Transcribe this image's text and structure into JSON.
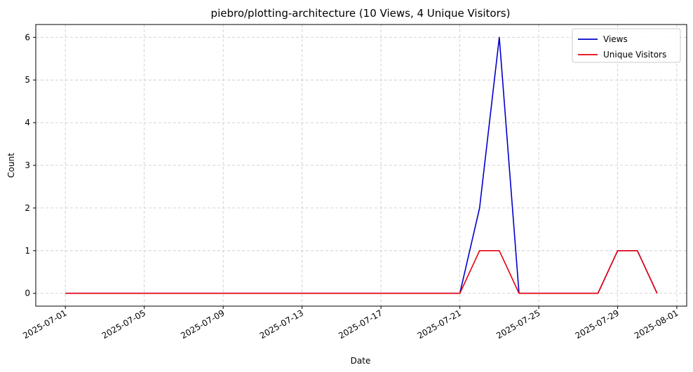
{
  "chart_data": {
    "type": "line",
    "title": "piebro/plotting-architecture (10 Views, 4 Unique Visitors)",
    "xlabel": "Date",
    "ylabel": "Count",
    "x": [
      "2025-07-01",
      "2025-07-02",
      "2025-07-03",
      "2025-07-04",
      "2025-07-05",
      "2025-07-06",
      "2025-07-07",
      "2025-07-08",
      "2025-07-09",
      "2025-07-10",
      "2025-07-11",
      "2025-07-12",
      "2025-07-13",
      "2025-07-14",
      "2025-07-15",
      "2025-07-16",
      "2025-07-17",
      "2025-07-18",
      "2025-07-19",
      "2025-07-20",
      "2025-07-21",
      "2025-07-22",
      "2025-07-23",
      "2025-07-24",
      "2025-07-25",
      "2025-07-26",
      "2025-07-27",
      "2025-07-28",
      "2025-07-29",
      "2025-07-30",
      "2025-07-31"
    ],
    "series": [
      {
        "name": "Views",
        "color": "#0000cc",
        "values": [
          0,
          0,
          0,
          0,
          0,
          0,
          0,
          0,
          0,
          0,
          0,
          0,
          0,
          0,
          0,
          0,
          0,
          0,
          0,
          0,
          0,
          2,
          6,
          0,
          0,
          0,
          0,
          0,
          1,
          1,
          0
        ]
      },
      {
        "name": "Unique Visitors",
        "color": "#e8000b",
        "values": [
          0,
          0,
          0,
          0,
          0,
          0,
          0,
          0,
          0,
          0,
          0,
          0,
          0,
          0,
          0,
          0,
          0,
          0,
          0,
          0,
          0,
          1,
          1,
          0,
          0,
          0,
          0,
          0,
          1,
          1,
          0
        ]
      }
    ],
    "xticks": [
      "2025-07-01",
      "2025-07-05",
      "2025-07-09",
      "2025-07-13",
      "2025-07-17",
      "2025-07-21",
      "2025-07-25",
      "2025-07-29",
      "2025-08-01"
    ],
    "xlim": [
      "2025-06-29.5",
      "2025-08-01.5"
    ],
    "yticks": [
      0,
      1,
      2,
      3,
      4,
      5,
      6
    ],
    "ylim": [
      -0.3,
      6.3
    ],
    "grid": true,
    "grid_color": "#c8c8c8",
    "legend_position": "top-right"
  }
}
